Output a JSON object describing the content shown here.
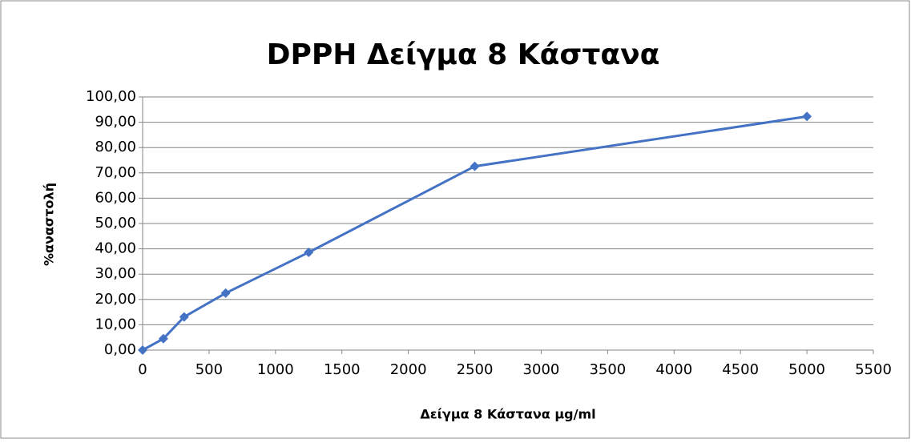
{
  "chart_data": {
    "type": "line",
    "title": "DPPH  Δείγμα 8 Κάστανα",
    "xlabel": "Δείγμα 8 Κάστανα μg/ml",
    "ylabel": "%αναστολή",
    "x": [
      0,
      156.25,
      312.5,
      625,
      1250,
      2500,
      5000
    ],
    "values": [
      0,
      4.5,
      13.1,
      22.5,
      38.6,
      72.6,
      92.3
    ],
    "color": "#4472c4",
    "xlim": [
      0,
      5500
    ],
    "xticks": [
      0,
      500,
      1000,
      1500,
      2000,
      2500,
      3000,
      3500,
      4000,
      4500,
      5000,
      5500
    ],
    "ylim": [
      0,
      100
    ],
    "yticks": [
      {
        "value": 0,
        "label": "0,00"
      },
      {
        "value": 10,
        "label": "10,00"
      },
      {
        "value": 20,
        "label": "20,00"
      },
      {
        "value": 30,
        "label": "30,00"
      },
      {
        "value": 40,
        "label": "40,00"
      },
      {
        "value": 50,
        "label": "50,00"
      },
      {
        "value": 60,
        "label": "60,00"
      },
      {
        "value": 70,
        "label": "70,00"
      },
      {
        "value": 80,
        "label": "80,00"
      },
      {
        "value": 90,
        "label": "90,00"
      },
      {
        "value": 100,
        "label": "100,00"
      }
    ],
    "grid": true
  }
}
